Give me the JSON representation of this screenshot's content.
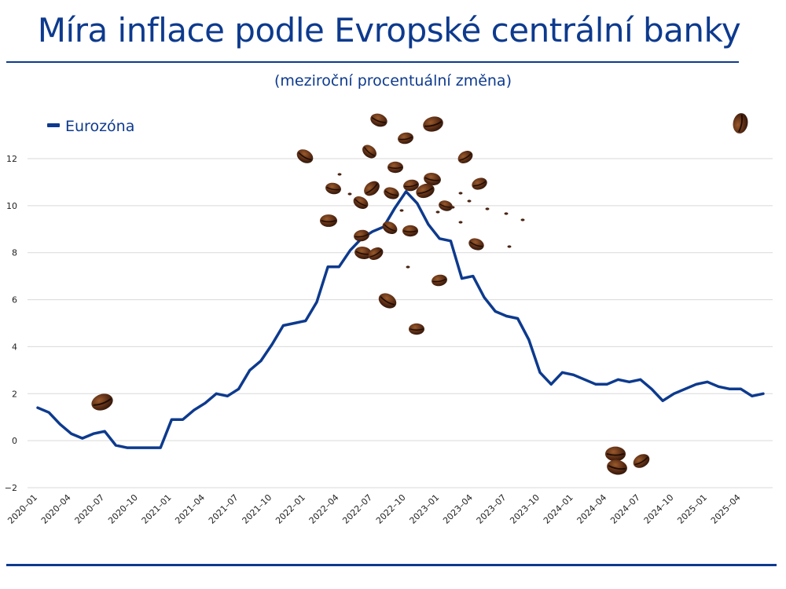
{
  "header": {
    "title": "Míra inflace podle Evropské centrální banky",
    "subtitle": "(meziroční procentuální změna)"
  },
  "colors": {
    "series": "#0d3a8e",
    "grid": "#d9d9d9",
    "bean_dark": "#4a2412",
    "bean_light": "#8a4a22"
  },
  "decor": {
    "icon": "coffee-bean-icon"
  },
  "chart_data": {
    "type": "line",
    "legend_position": "top-left",
    "grid": true,
    "ylim": [
      -2,
      14
    ],
    "yticks": [
      -2,
      0,
      2,
      4,
      6,
      8,
      10,
      12
    ],
    "ytick_labels": [
      "−2",
      "0",
      "2",
      "4",
      "6",
      "8",
      "10",
      "12"
    ],
    "xtick_labels": [
      "2020–01",
      "2020–04",
      "2020–07",
      "2020–10",
      "2021–01",
      "2021–04",
      "2021–07",
      "2021–10",
      "2022–01",
      "2022–04",
      "2022–07",
      "2022–10",
      "2023–01",
      "2023–04",
      "2023–07",
      "2023–10",
      "2024–01",
      "2024–04",
      "2024–07",
      "2024–10",
      "2025–01",
      "2025–04"
    ],
    "x": [
      "2020-01",
      "2020-02",
      "2020-03",
      "2020-04",
      "2020-05",
      "2020-06",
      "2020-07",
      "2020-08",
      "2020-09",
      "2020-10",
      "2020-11",
      "2020-12",
      "2021-01",
      "2021-02",
      "2021-03",
      "2021-04",
      "2021-05",
      "2021-06",
      "2021-07",
      "2021-08",
      "2021-09",
      "2021-10",
      "2021-11",
      "2021-12",
      "2022-01",
      "2022-02",
      "2022-03",
      "2022-04",
      "2022-05",
      "2022-06",
      "2022-07",
      "2022-08",
      "2022-09",
      "2022-10",
      "2022-11",
      "2022-12",
      "2023-01",
      "2023-02",
      "2023-03",
      "2023-04",
      "2023-05",
      "2023-06",
      "2023-07",
      "2023-08",
      "2023-09",
      "2023-10",
      "2023-11",
      "2023-12",
      "2024-01",
      "2024-02",
      "2024-03",
      "2024-04",
      "2024-05",
      "2024-06",
      "2024-07",
      "2024-08",
      "2024-09",
      "2024-10",
      "2024-11",
      "2024-12",
      "2025-01",
      "2025-02",
      "2025-03",
      "2025-04",
      "2025-05",
      "2025-06"
    ],
    "series": [
      {
        "name": "Eurozóna",
        "values": [
          1.4,
          1.2,
          0.7,
          0.3,
          0.1,
          0.3,
          0.4,
          -0.2,
          -0.3,
          -0.3,
          -0.3,
          -0.3,
          0.9,
          0.9,
          1.3,
          1.6,
          2.0,
          1.9,
          2.2,
          3.0,
          3.4,
          4.1,
          4.9,
          5.0,
          5.1,
          5.9,
          7.4,
          7.4,
          8.1,
          8.6,
          8.9,
          9.1,
          9.9,
          10.6,
          10.1,
          9.2,
          8.6,
          8.5,
          6.9,
          7.0,
          6.1,
          5.5,
          5.3,
          5.2,
          4.3,
          2.9,
          2.4,
          2.9,
          2.8,
          2.6,
          2.4,
          2.4,
          2.6,
          2.5,
          2.6,
          2.2,
          1.7,
          2.0,
          2.2,
          2.4,
          2.5,
          2.3,
          2.2,
          2.2,
          1.9,
          2.0
        ]
      }
    ]
  }
}
